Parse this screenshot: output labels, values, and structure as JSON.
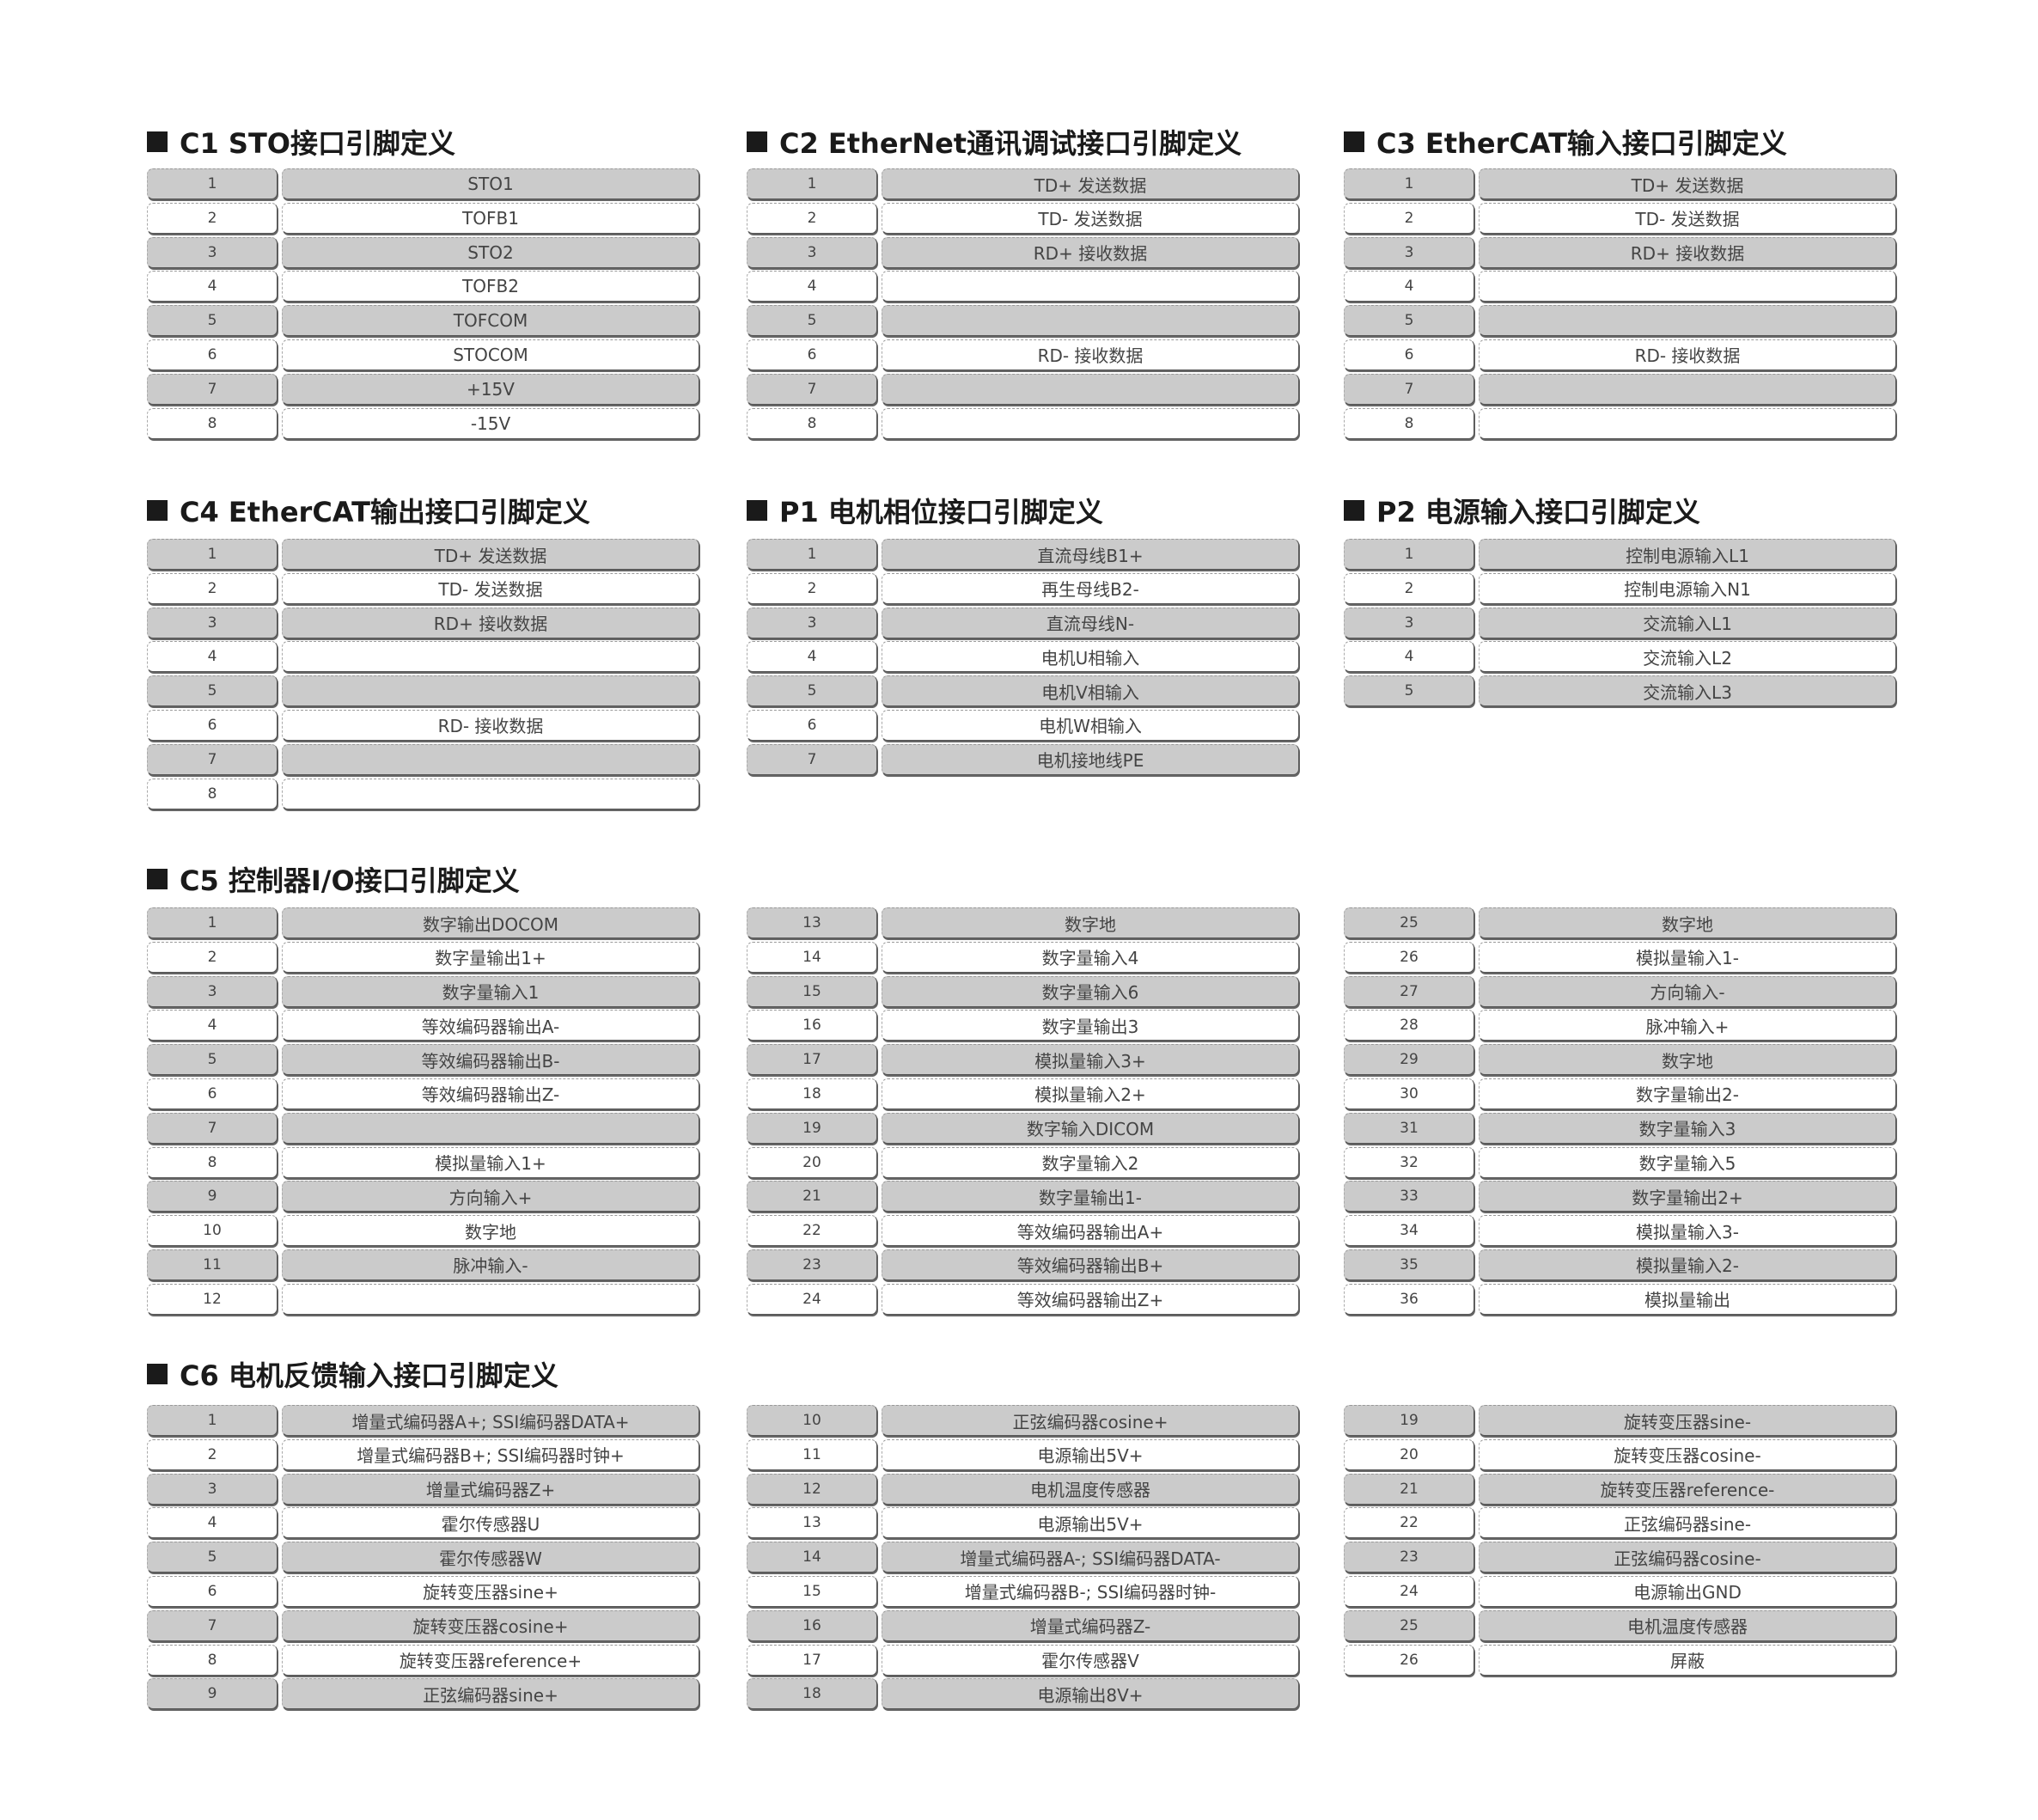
{
  "colors": {
    "odd_row": "#cbcbcb",
    "even_row": "#ffffff",
    "title": "#1a1a1a"
  },
  "sections": [
    {
      "title": "C1  STO接口引脚定义",
      "tables": [
        {
          "rows": [
            [
              "1",
              "STO1"
            ],
            [
              "2",
              "TOFB1"
            ],
            [
              "3",
              "STO2"
            ],
            [
              "4",
              "TOFB2"
            ],
            [
              "5",
              "TOFCOM"
            ],
            [
              "6",
              "STOCOM"
            ],
            [
              "7",
              "+15V"
            ],
            [
              "8",
              "-15V"
            ]
          ]
        }
      ]
    },
    {
      "title": "C2 EtherNet通讯调试接口引脚定义",
      "tables": [
        {
          "rows": [
            [
              "1",
              "TD+ 发送数据"
            ],
            [
              "2",
              "TD- 发送数据"
            ],
            [
              "3",
              "RD+ 接收数据"
            ],
            [
              "4",
              ""
            ],
            [
              "5",
              ""
            ],
            [
              "6",
              "RD- 接收数据"
            ],
            [
              "7",
              ""
            ],
            [
              "8",
              ""
            ]
          ]
        }
      ]
    },
    {
      "title": "C3 EtherCAT输入接口引脚定义",
      "tables": [
        {
          "rows": [
            [
              "1",
              "TD+ 发送数据"
            ],
            [
              "2",
              "TD- 发送数据"
            ],
            [
              "3",
              "RD+ 接收数据"
            ],
            [
              "4",
              ""
            ],
            [
              "5",
              ""
            ],
            [
              "6",
              "RD- 接收数据"
            ],
            [
              "7",
              ""
            ],
            [
              "8",
              ""
            ]
          ]
        }
      ]
    },
    {
      "title": "C4 EtherCAT输出接口引脚定义",
      "tables": [
        {
          "rows": [
            [
              "1",
              "TD+ 发送数据"
            ],
            [
              "2",
              "TD- 发送数据"
            ],
            [
              "3",
              "RD+ 接收数据"
            ],
            [
              "4",
              ""
            ],
            [
              "5",
              ""
            ],
            [
              "6",
              "RD- 接收数据"
            ],
            [
              "7",
              ""
            ],
            [
              "8",
              ""
            ]
          ]
        }
      ]
    },
    {
      "title": "P1  电机相位接口引脚定义",
      "tables": [
        {
          "rows": [
            [
              "1",
              "直流母线B1+"
            ],
            [
              "2",
              "再生母线B2-"
            ],
            [
              "3",
              "直流母线N-"
            ],
            [
              "4",
              "电机U相输入"
            ],
            [
              "5",
              "电机V相输入"
            ],
            [
              "6",
              "电机W相输入"
            ],
            [
              "7",
              "电机接地线PE"
            ]
          ]
        }
      ]
    },
    {
      "title": "P2  电源输入接口引脚定义",
      "tables": [
        {
          "rows": [
            [
              "1",
              "控制电源输入L1"
            ],
            [
              "2",
              "控制电源输入N1"
            ],
            [
              "3",
              "交流输入L1"
            ],
            [
              "4",
              "交流输入L2"
            ],
            [
              "5",
              "交流输入L3"
            ]
          ]
        }
      ]
    },
    {
      "title": "C5 控制器I/O接口引脚定义",
      "tables": [
        {
          "rows": [
            [
              "1",
              "数字输出DOCOM"
            ],
            [
              "2",
              "数字量输出1+"
            ],
            [
              "3",
              "数字量输入1"
            ],
            [
              "4",
              "等效编码器输出A-"
            ],
            [
              "5",
              "等效编码器输出B-"
            ],
            [
              "6",
              "等效编码器输出Z-"
            ],
            [
              "7",
              ""
            ],
            [
              "8",
              "模拟量输入1+"
            ],
            [
              "9",
              "方向输入+"
            ],
            [
              "10",
              "数字地"
            ],
            [
              "11",
              "脉冲输入-"
            ],
            [
              "12",
              ""
            ]
          ]
        },
        {
          "rows": [
            [
              "13",
              "数字地"
            ],
            [
              "14",
              "数字量输入4"
            ],
            [
              "15",
              "数字量输入6"
            ],
            [
              "16",
              "数字量输出3"
            ],
            [
              "17",
              "模拟量输入3+"
            ],
            [
              "18",
              "模拟量输入2+"
            ],
            [
              "19",
              "数字输入DICOM"
            ],
            [
              "20",
              "数字量输入2"
            ],
            [
              "21",
              "数字量输出1-"
            ],
            [
              "22",
              "等效编码器输出A+"
            ],
            [
              "23",
              "等效编码器输出B+"
            ],
            [
              "24",
              "等效编码器输出Z+"
            ]
          ]
        },
        {
          "rows": [
            [
              "25",
              "数字地"
            ],
            [
              "26",
              "模拟量输入1-"
            ],
            [
              "27",
              "方向输入-"
            ],
            [
              "28",
              "脉冲输入+"
            ],
            [
              "29",
              "数字地"
            ],
            [
              "30",
              "数字量输出2-"
            ],
            [
              "31",
              "数字量输入3"
            ],
            [
              "32",
              "数字量输入5"
            ],
            [
              "33",
              "数字量输出2+"
            ],
            [
              "34",
              "模拟量输入3-"
            ],
            [
              "35",
              "模拟量输入2-"
            ],
            [
              "36",
              "模拟量输出"
            ]
          ]
        }
      ]
    },
    {
      "title": "C6 电机反馈输入接口引脚定义",
      "tables": [
        {
          "rows": [
            [
              "1",
              "增量式编码器A+; SSI编码器DATA+"
            ],
            [
              "2",
              "增量式编码器B+; SSI编码器时钟+"
            ],
            [
              "3",
              "增量式编码器Z+"
            ],
            [
              "4",
              "霍尔传感器U"
            ],
            [
              "5",
              "霍尔传感器W"
            ],
            [
              "6",
              "旋转变压器sine+"
            ],
            [
              "7",
              "旋转变压器cosine+"
            ],
            [
              "8",
              "旋转变压器reference+"
            ],
            [
              "9",
              "正弦编码器sine+"
            ]
          ]
        },
        {
          "rows": [
            [
              "10",
              "正弦编码器cosine+"
            ],
            [
              "11",
              "电源输出5V+"
            ],
            [
              "12",
              "电机温度传感器"
            ],
            [
              "13",
              "电源输出5V+"
            ],
            [
              "14",
              "增量式编码器A-; SSI编码器DATA-"
            ],
            [
              "15",
              "增量式编码器B-; SSI编码器时钟-"
            ],
            [
              "16",
              "增量式编码器Z-"
            ],
            [
              "17",
              "霍尔传感器V"
            ],
            [
              "18",
              "电源输出8V+"
            ]
          ]
        },
        {
          "rows": [
            [
              "19",
              "旋转变压器sine-"
            ],
            [
              "20",
              "旋转变压器cosine-"
            ],
            [
              "21",
              "旋转变压器reference-"
            ],
            [
              "22",
              "正弦编码器sine-"
            ],
            [
              "23",
              "正弦编码器cosine-"
            ],
            [
              "24",
              "电源输出GND"
            ],
            [
              "25",
              "电机温度传感器"
            ],
            [
              "26",
              "屏蔽"
            ]
          ]
        }
      ]
    }
  ]
}
